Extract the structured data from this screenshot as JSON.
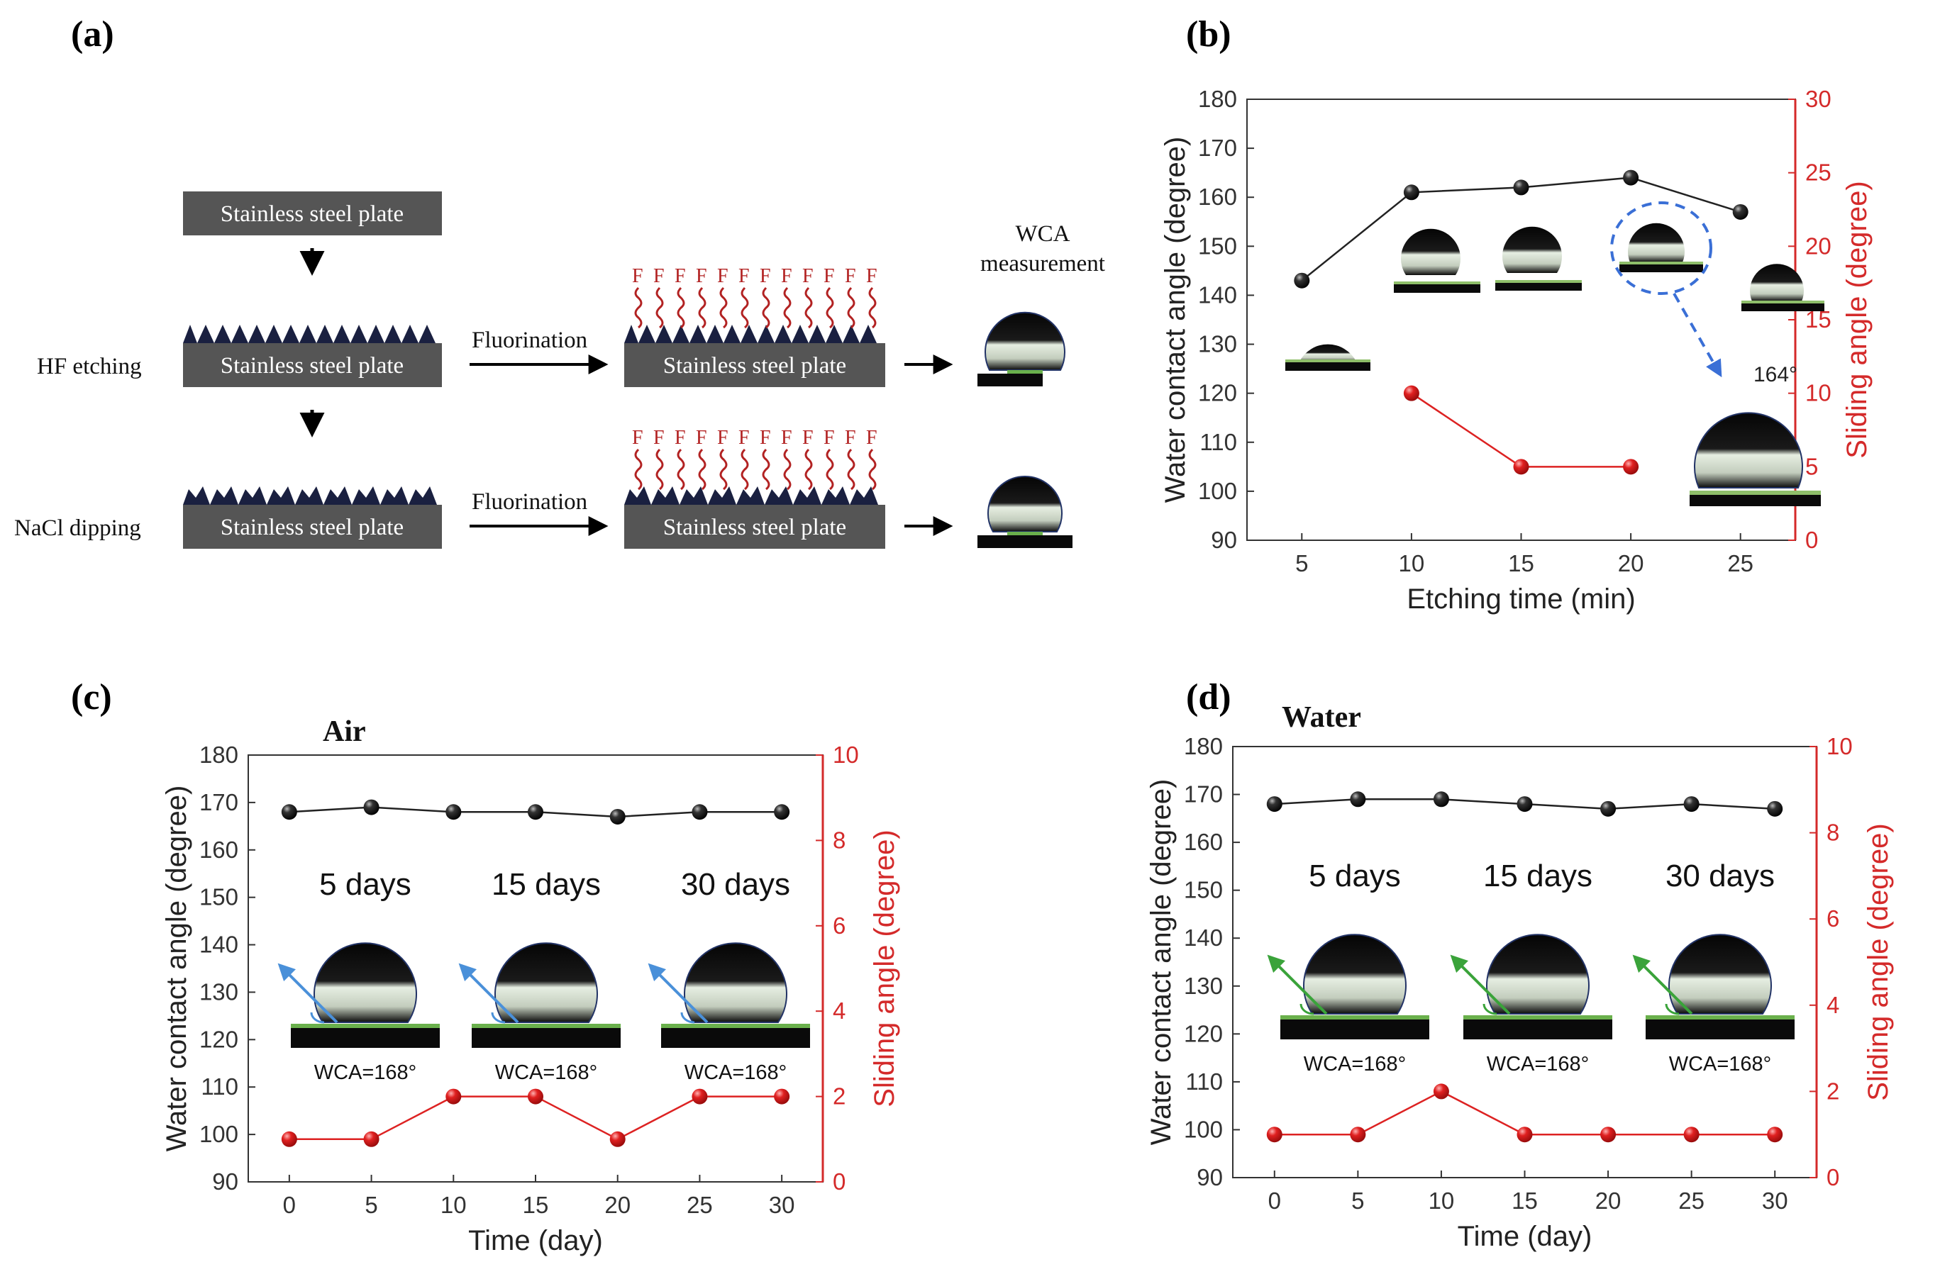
{
  "panels": {
    "a": {
      "letter": "(a)",
      "plate_label": "Stainless steel plate",
      "step_hf": "HF etching",
      "step_nacl": "NaCl dipping",
      "fluorination": "Fluorination",
      "wca_line1": "WCA",
      "wca_line2": "measurement",
      "fluorine_symbol": "F"
    },
    "b": {
      "letter": "(b)",
      "inset_angle": "164°"
    },
    "c": {
      "letter": "(c)",
      "title": "Air"
    },
    "d": {
      "letter": "(d)",
      "title": "Water"
    }
  },
  "insets": {
    "days": [
      "5 days",
      "15 days",
      "30 days"
    ],
    "wca_text": "WCA=168°"
  },
  "colors": {
    "plate": "#555555",
    "black_series": "#111111",
    "red_series": "#dd2222",
    "red_axis": "#d42a2a",
    "fluorine_red": "#b22222",
    "blue_arrow": "#4a90d9",
    "green_arrow": "#3aa33a",
    "dashed_blue": "#3a6fd6"
  },
  "chart_data": [
    {
      "panel": "b",
      "type": "line",
      "xlabel": "Etching time (min)",
      "ylabel": "Water contact angle (degree)",
      "y2label": "Sliding angle (degree)",
      "x_ticks": [
        5,
        10,
        15,
        20,
        25
      ],
      "xlim": [
        2.5,
        27.5
      ],
      "ylim": [
        90,
        180
      ],
      "y_ticks": [
        90,
        100,
        110,
        120,
        130,
        140,
        150,
        160,
        170,
        180
      ],
      "y2lim": [
        0,
        30
      ],
      "y2_ticks": [
        0,
        5,
        10,
        15,
        20,
        25,
        30
      ],
      "series": [
        {
          "name": "Water contact angle",
          "axis": "left",
          "x": [
            5,
            10,
            15,
            20,
            25
          ],
          "values": [
            143,
            161,
            162,
            164,
            157
          ]
        },
        {
          "name": "Sliding angle",
          "axis": "right",
          "x": [
            10,
            15,
            20
          ],
          "values": [
            10,
            5,
            5
          ]
        }
      ]
    },
    {
      "panel": "c",
      "type": "line",
      "title": "Air",
      "xlabel": "Time (day)",
      "ylabel": "Water contact angle (degree)",
      "y2label": "Sliding angle (degree)",
      "x_ticks": [
        0,
        5,
        10,
        15,
        20,
        25,
        30
      ],
      "xlim": [
        -2.5,
        32.5
      ],
      "ylim": [
        90,
        180
      ],
      "y_ticks": [
        90,
        100,
        110,
        120,
        130,
        140,
        150,
        160,
        170,
        180
      ],
      "y2lim": [
        0,
        10
      ],
      "y2_ticks": [
        0,
        2,
        4,
        6,
        8,
        10
      ],
      "series": [
        {
          "name": "Water contact angle",
          "axis": "left",
          "x": [
            0,
            5,
            10,
            15,
            20,
            25,
            30
          ],
          "values": [
            168,
            169,
            168,
            168,
            167,
            168,
            168
          ]
        },
        {
          "name": "Sliding angle",
          "axis": "right",
          "x": [
            0,
            5,
            10,
            15,
            20,
            25,
            30
          ],
          "values": [
            1,
            1,
            2,
            2,
            1,
            2,
            2
          ]
        }
      ]
    },
    {
      "panel": "d",
      "type": "line",
      "title": "Water",
      "xlabel": "Time (day)",
      "ylabel": "Water contact angle (degree)",
      "y2label": "Sliding angle (degree)",
      "x_ticks": [
        0,
        5,
        10,
        15,
        20,
        25,
        30
      ],
      "xlim": [
        -2.5,
        32.5
      ],
      "ylim": [
        90,
        180
      ],
      "y_ticks": [
        90,
        100,
        110,
        120,
        130,
        140,
        150,
        160,
        170,
        180
      ],
      "y2lim": [
        0,
        10
      ],
      "y2_ticks": [
        0,
        2,
        4,
        6,
        8,
        10
      ],
      "series": [
        {
          "name": "Water contact angle",
          "axis": "left",
          "x": [
            0,
            5,
            10,
            15,
            20,
            25,
            30
          ],
          "values": [
            168,
            169,
            169,
            168,
            167,
            168,
            167
          ]
        },
        {
          "name": "Sliding angle",
          "axis": "right",
          "x": [
            0,
            5,
            10,
            15,
            20,
            25,
            30
          ],
          "values": [
            1,
            1,
            2,
            1,
            1,
            1,
            1
          ]
        }
      ]
    }
  ]
}
